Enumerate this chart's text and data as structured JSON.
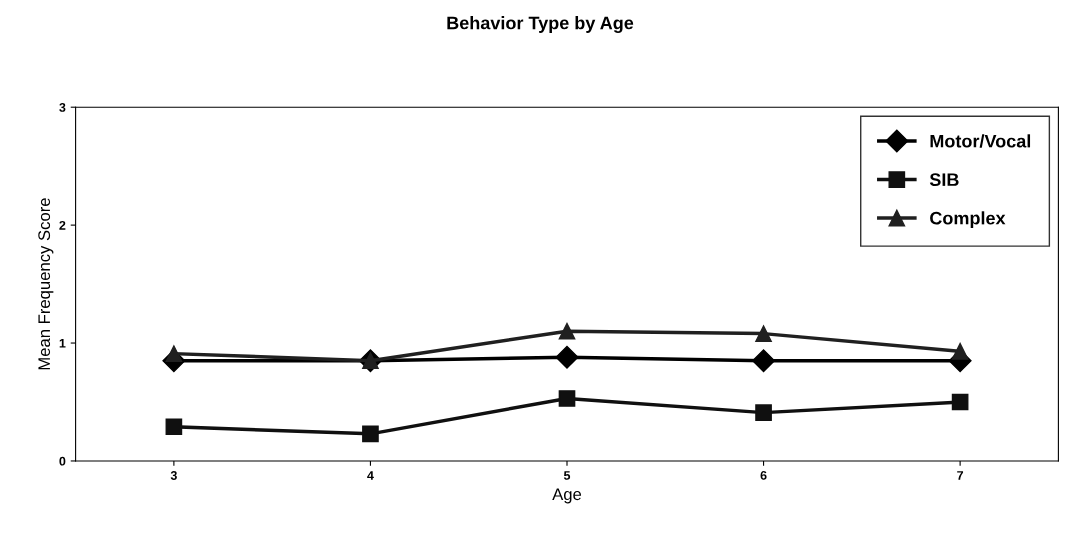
{
  "chart_data": {
    "type": "line",
    "title": "Behavior Type by Age",
    "xlabel": "Age",
    "ylabel": "Mean Frequency Score",
    "categories": [
      "3",
      "4",
      "5",
      "6",
      "7"
    ],
    "series": [
      {
        "name": "Motor/Vocal",
        "color": "#000000",
        "marker": "diamond",
        "values": [
          0.85,
          0.85,
          0.88,
          0.85,
          0.85
        ]
      },
      {
        "name": "SIB",
        "color": "#101010",
        "marker": "square",
        "values": [
          0.29,
          0.23,
          0.53,
          0.41,
          0.5
        ]
      },
      {
        "name": "Complex",
        "color": "#202020",
        "marker": "triangle",
        "values": [
          0.91,
          0.85,
          1.1,
          1.08,
          0.93
        ]
      }
    ],
    "ylim": [
      0,
      3
    ],
    "yticks": [
      0,
      1,
      2,
      3
    ],
    "grid": false,
    "legend": "top right",
    "line_style": "solid"
  }
}
